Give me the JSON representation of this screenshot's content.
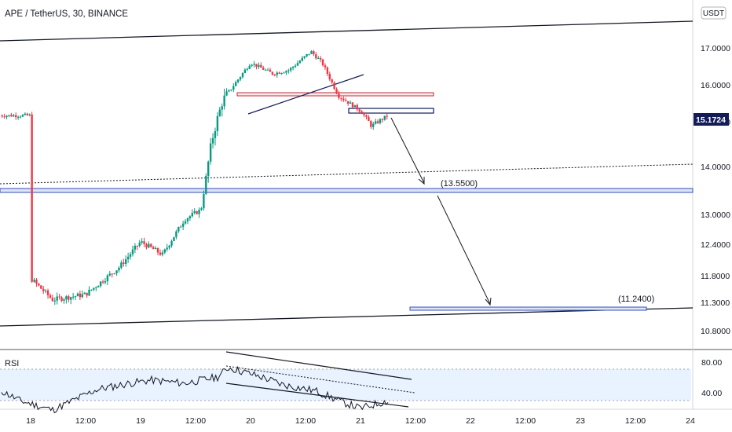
{
  "header": {
    "title": "APE / TetherUS, 30, BINANCE"
  },
  "currency": "USDT",
  "last_price": {
    "value": 15.1724,
    "label": "15.1724",
    "color": "#131c59"
  },
  "colors": {
    "up": "#089981",
    "down": "#f23645",
    "line": "#131722",
    "zone": "#3250b8",
    "rsi": "#131722",
    "rsi_band": "#e9f2ff"
  },
  "chart_data": {
    "type": "candlestick",
    "price_axis": {
      "ticks": [
        "17.0000",
        "16.0000",
        "15.0000",
        "14.0000",
        "13.0000",
        "12.4000",
        "11.8000",
        "11.3000",
        "10.8000"
      ]
    },
    "time_axis": {
      "ticks": [
        "18",
        "12:00",
        "19",
        "12:00",
        "20",
        "12:00",
        "21",
        "12:00",
        "22",
        "12:00",
        "23",
        "12:00",
        "24"
      ]
    },
    "annotations": {
      "target_1": {
        "label": "(13.5500)",
        "value": 13.55
      },
      "target_2": {
        "label": "(11.2400)",
        "value": 11.24
      }
    },
    "path": [
      [
        18.0,
        11.75
      ],
      [
        18.2,
        11.35
      ],
      [
        18.5,
        11.45
      ],
      [
        18.8,
        11.95
      ],
      [
        19.0,
        12.45
      ],
      [
        19.2,
        12.2
      ],
      [
        19.4,
        12.9
      ],
      [
        19.55,
        13.1
      ],
      [
        19.65,
        14.6
      ],
      [
        19.75,
        15.6
      ],
      [
        20.0,
        16.6
      ],
      [
        20.2,
        16.3
      ],
      [
        20.35,
        16.4
      ],
      [
        20.55,
        16.9
      ],
      [
        20.65,
        16.6
      ],
      [
        20.8,
        15.7
      ],
      [
        21.0,
        15.3
      ],
      [
        21.1,
        14.9
      ],
      [
        21.25,
        15.17
      ]
    ]
  },
  "rsi": {
    "label": "RSI",
    "ticks": [
      "80.00",
      "40.00"
    ],
    "path": [
      [
        17.7,
        55
      ],
      [
        17.9,
        40
      ],
      [
        18.2,
        28
      ],
      [
        18.6,
        54
      ],
      [
        18.9,
        62
      ],
      [
        19.1,
        66
      ],
      [
        19.4,
        62
      ],
      [
        19.7,
        70
      ],
      [
        19.8,
        82
      ],
      [
        20.1,
        70
      ],
      [
        20.3,
        60
      ],
      [
        20.6,
        52
      ],
      [
        20.8,
        40
      ],
      [
        21.0,
        30
      ],
      [
        21.2,
        38
      ],
      [
        21.3,
        40
      ]
    ]
  }
}
